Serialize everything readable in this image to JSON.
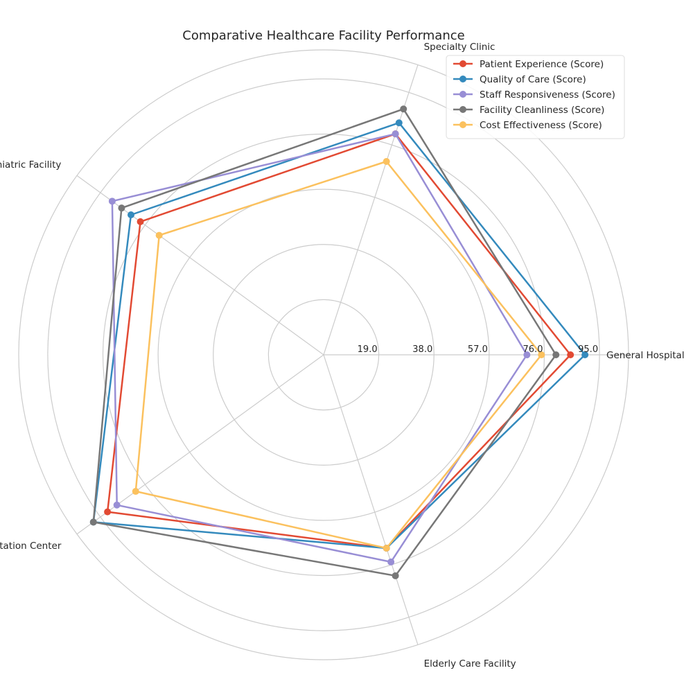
{
  "chart_data": {
    "type": "radar",
    "title": "Comparative Healthcare Facility Performance",
    "categories": [
      "General Hospital",
      "Specialty Clinic",
      "Psychiatric Facility",
      "Rehabilitation Center",
      "Elderly Care Facility"
    ],
    "radial_ticks": [
      19.0,
      38.0,
      57.0,
      76.0,
      95.0
    ],
    "radial_tick_labels": [
      "19.0",
      "38.0",
      "57.0",
      "76.0",
      "95.0"
    ],
    "rmax": 105,
    "grid": true,
    "legend_position": "top-right",
    "series": [
      {
        "name": "Patient Experience (Score)",
        "color": "#E24A33",
        "values": [
          85,
          80,
          78,
          92,
          70
        ]
      },
      {
        "name": "Quality of Care (Score)",
        "color": "#348ABD",
        "values": [
          90,
          84,
          82,
          98,
          70
        ]
      },
      {
        "name": "Staff Responsiveness (Score)",
        "color": "#988ED5",
        "values": [
          70,
          80,
          90,
          88,
          75
        ]
      },
      {
        "name": "Facility Cleanliness (Score)",
        "color": "#777777",
        "values": [
          80,
          89,
          86,
          98,
          80
        ]
      },
      {
        "name": "Cost Effectiveness (Score)",
        "color": "#FBC15E",
        "values": [
          75,
          70,
          70,
          80,
          70
        ]
      }
    ]
  }
}
